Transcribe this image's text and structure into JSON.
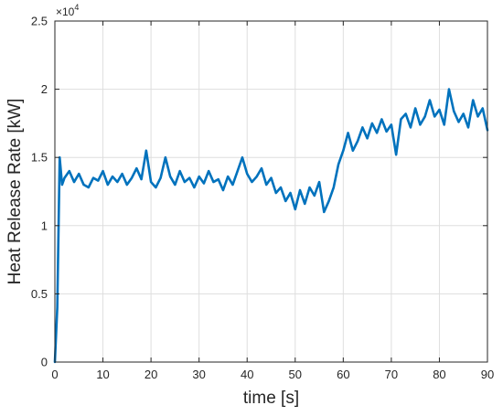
{
  "chart_data": {
    "type": "line",
    "title": "",
    "xlabel": "time [s]",
    "ylabel": "Heat Release Rate [kW]",
    "y_exponent_label": "×10",
    "y_exponent_power": "4",
    "xlim": [
      0,
      90
    ],
    "ylim": [
      0,
      25000
    ],
    "x_ticks": [
      0,
      10,
      20,
      30,
      40,
      50,
      60,
      70,
      80,
      90
    ],
    "y_ticks": [
      0,
      5000,
      10000,
      15000,
      20000,
      25000
    ],
    "x_tick_labels": [
      "0",
      "10",
      "20",
      "30",
      "40",
      "50",
      "60",
      "70",
      "80",
      "90"
    ],
    "y_tick_labels": [
      "0",
      "0.5",
      "1",
      "1.5",
      "2",
      "2.5"
    ],
    "grid": true,
    "series": [
      {
        "color": "#0072BD",
        "x": [
          0,
          0.5,
          1,
          1.5,
          2,
          3,
          4,
          5,
          6,
          7,
          8,
          9,
          10,
          11,
          12,
          13,
          14,
          15,
          16,
          17,
          18,
          19,
          20,
          21,
          22,
          23,
          24,
          25,
          26,
          27,
          28,
          29,
          30,
          31,
          32,
          33,
          34,
          35,
          36,
          37,
          38,
          39,
          40,
          41,
          42,
          43,
          44,
          45,
          46,
          47,
          48,
          49,
          50,
          51,
          52,
          53,
          54,
          55,
          56,
          57,
          58,
          59,
          60,
          61,
          62,
          63,
          64,
          65,
          66,
          67,
          68,
          69,
          70,
          71,
          72,
          73,
          74,
          75,
          76,
          77,
          78,
          79,
          80,
          81,
          82,
          83,
          84,
          85,
          86,
          87,
          88,
          89,
          90
        ],
        "y": [
          0,
          4000,
          15000,
          13000,
          13500,
          14000,
          13200,
          13800,
          13000,
          12800,
          13500,
          13300,
          14000,
          13000,
          13600,
          13200,
          13800,
          13000,
          13500,
          14200,
          13400,
          15500,
          13200,
          12800,
          13500,
          15000,
          13600,
          13000,
          14000,
          13200,
          13500,
          12800,
          13600,
          13100,
          14000,
          13200,
          13400,
          12600,
          13600,
          13000,
          14000,
          15000,
          13800,
          13200,
          13600,
          14200,
          13000,
          13500,
          12400,
          12800,
          11800,
          12400,
          11200,
          12600,
          11600,
          12800,
          12200,
          13200,
          11000,
          11800,
          12800,
          14500,
          15500,
          16800,
          15500,
          16200,
          17200,
          16400,
          17500,
          16800,
          17800,
          16900,
          17400,
          15200,
          17800,
          18200,
          17200,
          18600,
          17400,
          18000,
          19200,
          18000,
          18500,
          17400,
          20000,
          18400,
          17600,
          18200,
          17200,
          19200,
          18000,
          18600,
          17000
        ]
      }
    ]
  }
}
